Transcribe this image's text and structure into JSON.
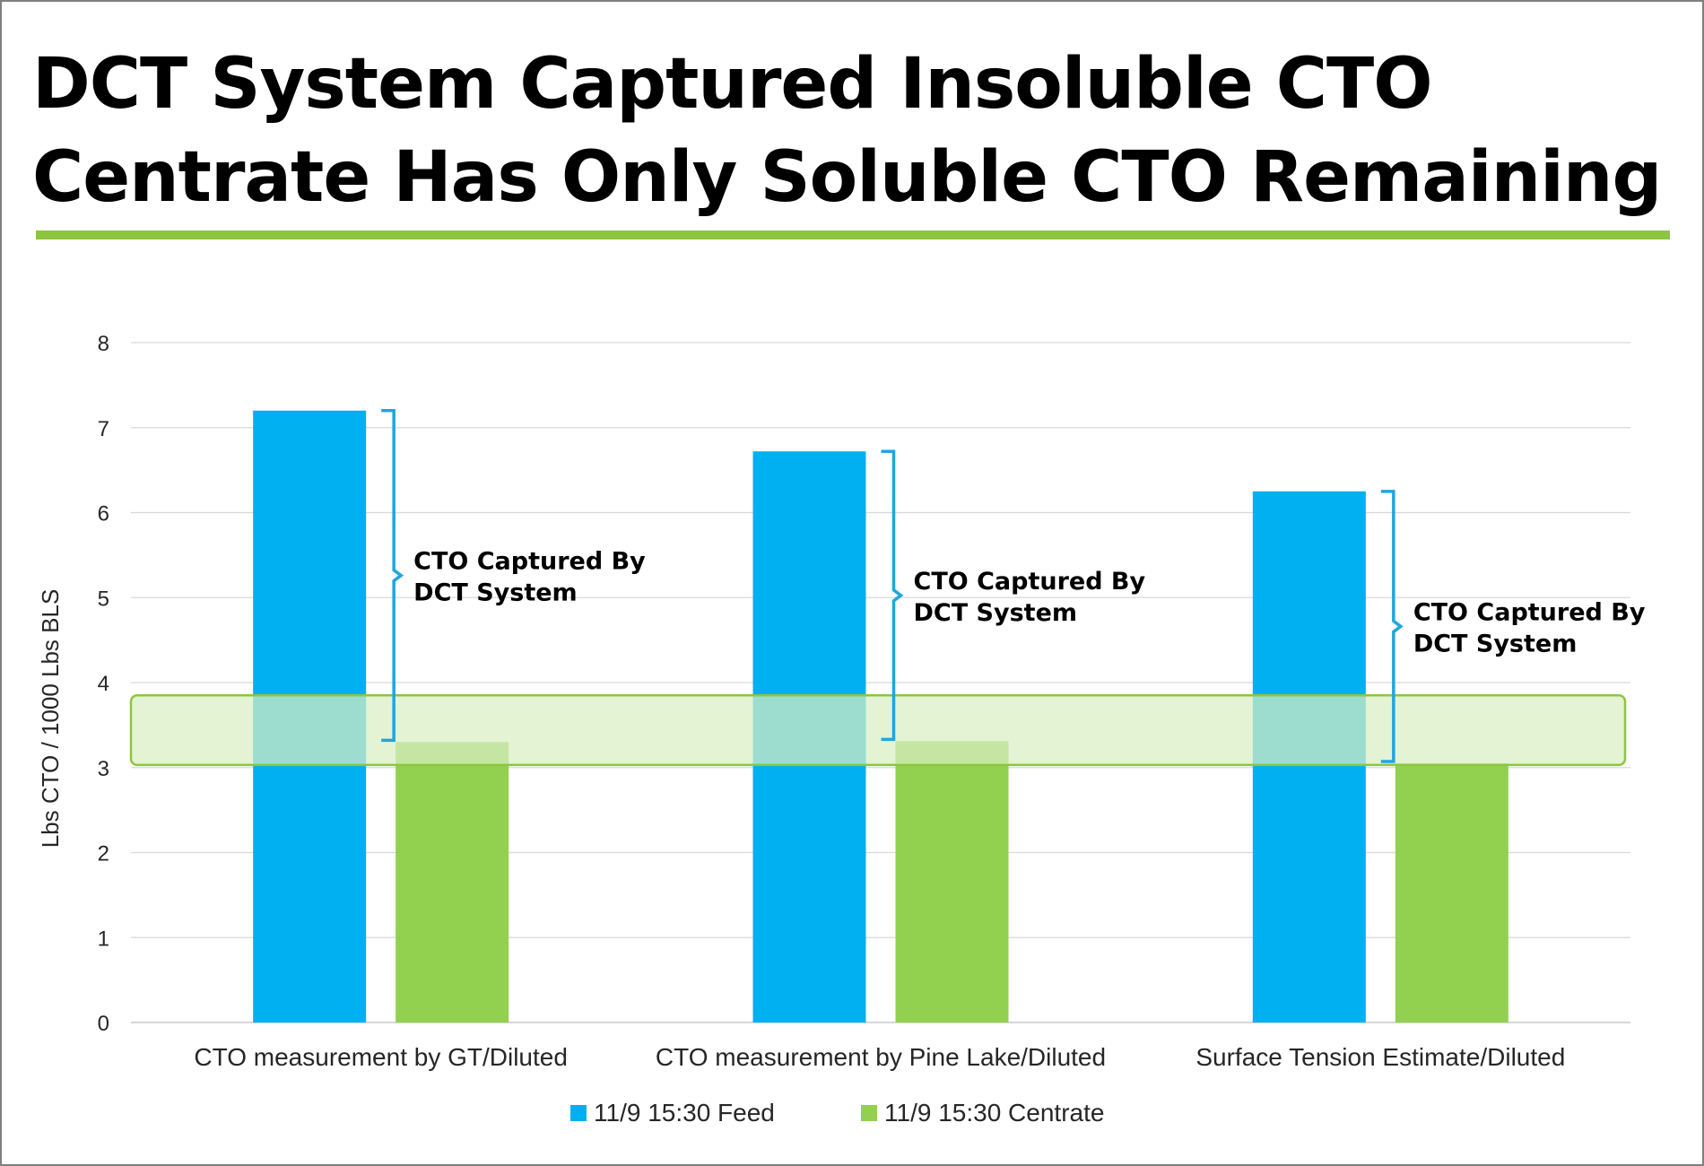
{
  "slide": {
    "title_line1": "DCT System Captured Insoluble CTO",
    "title_line2": "Centrate Has Only Soluble CTO Remaining",
    "rule_color": "#8cc63f"
  },
  "chart_data": {
    "type": "bar",
    "categories": [
      "CTO measurement by GT/Diluted",
      "CTO measurement by Pine Lake/Diluted",
      "Surface Tension Estimate/Diluted"
    ],
    "series": [
      {
        "name": "11/9 15:30 Feed",
        "color": "#00b0f0",
        "values": [
          7.2,
          6.72,
          6.25
        ]
      },
      {
        "name": "11/9 15:30 Centrate",
        "color": "#92d050",
        "values": [
          3.3,
          3.31,
          3.05
        ]
      }
    ],
    "xlabel": "",
    "ylabel": "Lbs CTO / 1000 Lbs BLS",
    "ylim": [
      0,
      8
    ],
    "yticks": [
      0,
      1,
      2,
      3,
      4,
      5,
      6,
      7,
      8
    ],
    "grid": true,
    "legend_position": "bottom-center",
    "highlight_band": {
      "y_range": [
        3.03,
        3.85
      ],
      "fill": "#d8efc4",
      "stroke": "#8cc63f"
    },
    "annotations": [
      {
        "category_index": 0,
        "from": 3.3,
        "to": 7.2,
        "text_line1": "CTO Captured By",
        "text_line2": "DCT System",
        "bracket_color": "#1fa6e0"
      },
      {
        "category_index": 1,
        "from": 3.31,
        "to": 6.72,
        "text_line1": "CTO Captured By",
        "text_line2": "DCT System",
        "bracket_color": "#1fa6e0"
      },
      {
        "category_index": 2,
        "from": 3.05,
        "to": 6.25,
        "text_line1": "CTO Captured By",
        "text_line2": "DCT System",
        "bracket_color": "#1fa6e0"
      }
    ]
  }
}
